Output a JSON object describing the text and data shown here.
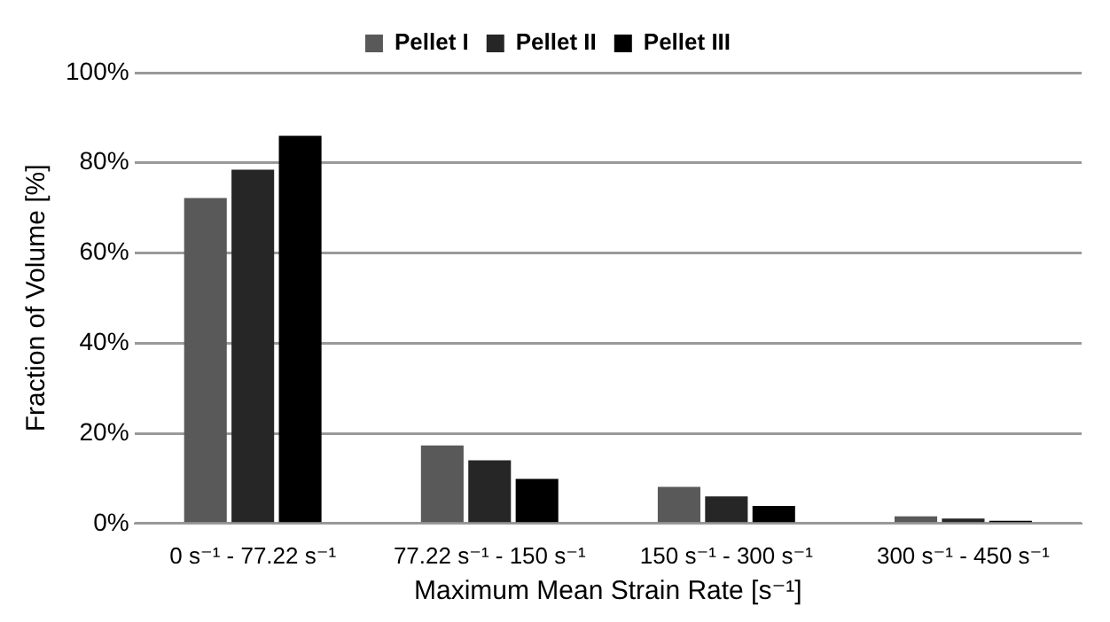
{
  "chart_data": {
    "type": "bar",
    "xlabel": "Maximum Mean Strain Rate [s⁻¹]",
    "ylabel": "Fraction of Volume [%]",
    "categories": [
      "0 s⁻¹ - 77.22 s⁻¹",
      "77.22 s⁻¹ - 150 s⁻¹",
      "150 s⁻¹ - 300 s⁻¹",
      "300 s⁻¹ - 450 s⁻¹"
    ],
    "series": [
      {
        "name": "Pellet I",
        "color": "#595959",
        "values": [
          72.2,
          17.3,
          8.1,
          1.6
        ]
      },
      {
        "name": "Pellet II",
        "color": "#262626",
        "values": [
          78.5,
          14.0,
          6.0,
          1.1
        ]
      },
      {
        "name": "Pellet III",
        "color": "#000000",
        "values": [
          86.0,
          9.9,
          3.9,
          0.6
        ]
      }
    ],
    "ylim": [
      0,
      100
    ],
    "yticks": [
      {
        "value": 0,
        "label": "0%"
      },
      {
        "value": 20,
        "label": "20%"
      },
      {
        "value": 40,
        "label": "40%"
      },
      {
        "value": 60,
        "label": "60%"
      },
      {
        "value": 80,
        "label": "80%"
      },
      {
        "value": 100,
        "label": "100%"
      }
    ],
    "grid": "y",
    "legend": "top"
  }
}
